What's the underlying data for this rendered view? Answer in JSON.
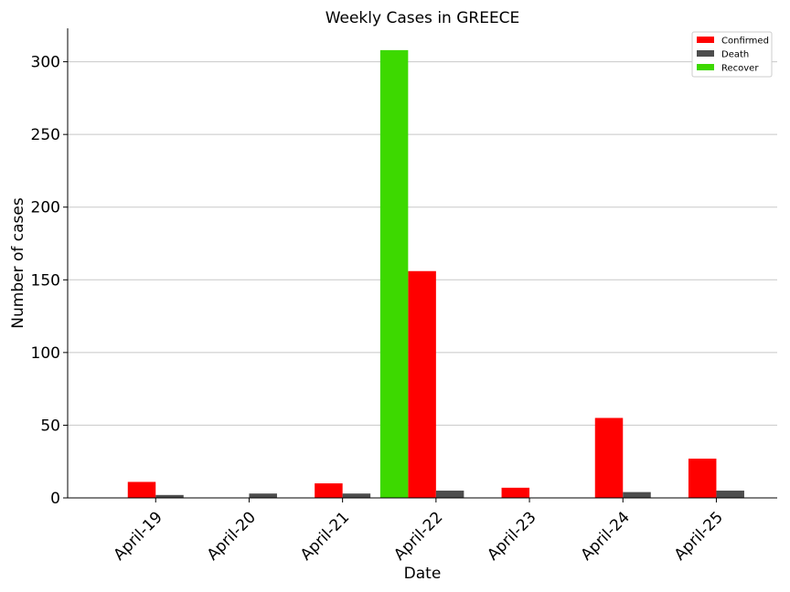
{
  "chart_data": {
    "type": "bar",
    "title": "Weekly Cases in GREECE",
    "xlabel": "Date",
    "ylabel": "Number of cases",
    "categories": [
      "April-19",
      "April-20",
      "April-21",
      "April-22",
      "April-23",
      "April-24",
      "April-25"
    ],
    "series": [
      {
        "name": "Confirmed",
        "color": "#ff0000",
        "values": [
          11,
          0,
          10,
          156,
          7,
          55,
          27
        ]
      },
      {
        "name": "Death",
        "color": "#4d4d4d",
        "values": [
          2,
          3,
          3,
          5,
          0,
          4,
          5
        ]
      },
      {
        "name": "Recover",
        "color": "#3dd900",
        "values": [
          0,
          0,
          0,
          308,
          0,
          0,
          0
        ]
      }
    ],
    "ylim": [
      0,
      323
    ],
    "yticks": [
      0,
      50,
      100,
      150,
      200,
      250,
      300
    ],
    "grid": "horizontal",
    "legend_position": "top-right"
  }
}
